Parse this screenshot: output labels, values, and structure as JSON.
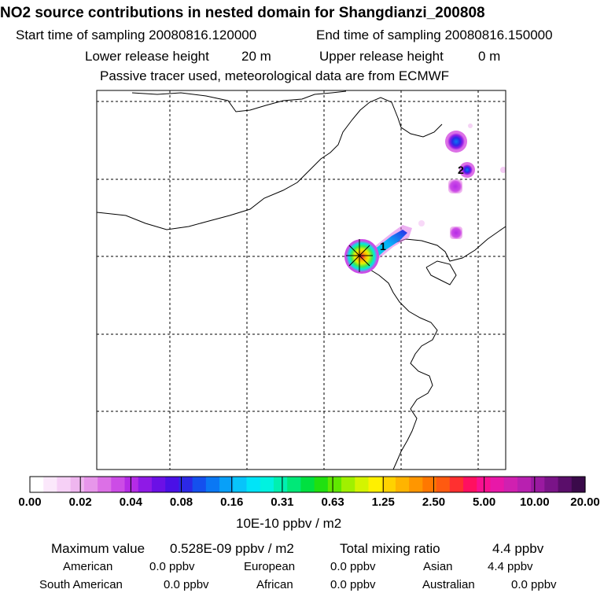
{
  "header": {
    "title": "NO2 source contributions in nested domain for Shangdianzi_200808",
    "start_label": "Start time of sampling 20080816.120000",
    "end_label": "End time of sampling 20080816.150000",
    "lower_label": "Lower release height",
    "lower_value": "20 m",
    "upper_label": "Upper release height",
    "upper_value": "0 m",
    "note": "Passive tracer used, meteorological data are from ECMWF"
  },
  "chart_data": {
    "type": "heatmap",
    "title": "NO2 source contributions in nested domain for Shangdianzi_200808",
    "markers": [
      {
        "label": "1",
        "kind": "receptor-site"
      },
      {
        "label": "2",
        "kind": "source-label"
      }
    ],
    "colorbar": {
      "unit": "10E-10 ppbv / m2",
      "tick_labels": [
        "0.00",
        "0.02",
        "0.04",
        "0.08",
        "0.16",
        "0.31",
        "0.63",
        "1.25",
        "2.50",
        "5.00",
        "10.00",
        "20.00"
      ],
      "colors": [
        "#ffffff",
        "#fbe8fb",
        "#f6d0f6",
        "#efb6ef",
        "#e796ea",
        "#dc70e6",
        "#cc4ce6",
        "#b52be6",
        "#8f1ae6",
        "#6b10e6",
        "#4a10e6",
        "#2c28e6",
        "#1450ee",
        "#0a78f4",
        "#08a0f8",
        "#08c4fa",
        "#00e4f8",
        "#00f2e0",
        "#00f0b0",
        "#00e878",
        "#00e040",
        "#20e010",
        "#60e800",
        "#a0f000",
        "#d4f400",
        "#fff000",
        "#ffd200",
        "#ffb400",
        "#ff9600",
        "#ff7800",
        "#ff5a10",
        "#ff3030",
        "#ff1060",
        "#f81090",
        "#e818a8",
        "#d020b0",
        "#b820b0",
        "#9a1aa0",
        "#7a1488",
        "#5a0e6a",
        "#3a0a4a"
      ]
    },
    "grid": true
  },
  "stats": {
    "max_label": "Maximum value",
    "max_value": "0.528E-09 ppbv / m2",
    "total_label": "Total mixing ratio",
    "total_value": "4.4 ppbv",
    "regions": [
      {
        "name": "American",
        "value": "0.0 ppbv"
      },
      {
        "name": "European",
        "value": "0.0 ppbv"
      },
      {
        "name": "Asian",
        "value": "4.4 ppbv"
      },
      {
        "name": "South American",
        "value": "0.0 ppbv"
      },
      {
        "name": "African",
        "value": "0.0 ppbv"
      },
      {
        "name": "Australian",
        "value": "0.0 ppbv"
      }
    ]
  }
}
